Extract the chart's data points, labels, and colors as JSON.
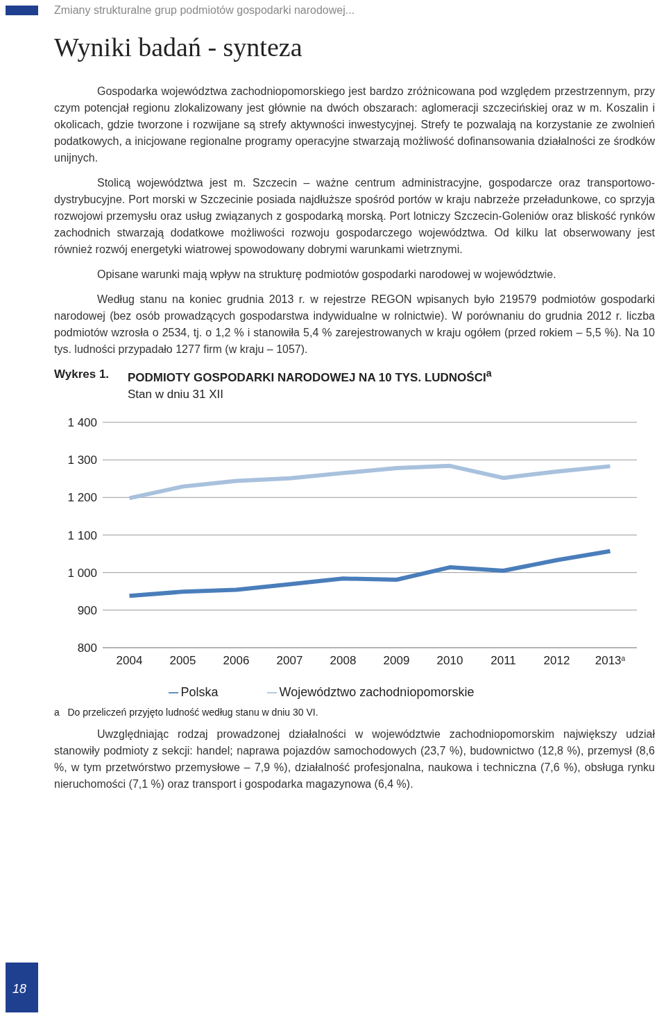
{
  "chart_data": {
    "type": "line",
    "title": "PODMIOTY GOSPODARKI NARODOWEJ NA 10 TYS. LUDNOŚCI$^{a}$",
    "subtitle": "Stan w dniu 31 XII",
    "annotations": [
      "Zmiany strukturalne grup podmiotów gospodarki narodowej...",
      "Wyniki badań - synteza",
      "Gospodarka województwa zachodniopomorskiego jest bardzo zróżnicowana pod względem przestrzennym, przy czym potencjał regionu zlokalizowany jest głównie na dwóch obszarach: aglomeracji szczecińskiej oraz w m. Koszalin i okolicach, gdzie tworzone i rozwijane są strefy aktywności inwestycyjnej. Strefy te pozwalają na korzystanie ze zwolnień podatkowych, a inicjowane regionalne programy operacyjne stwarzają możliwość dofinansowania działalności ze środków unijnych.",
      "Stolicą województwa jest m. Szczecin – ważne centrum administracyjne, gospodarcze oraz transportowo-dystrybucyjne. Port morski w Szczecinie posiada najdłuższe spośród portów w kraju nabrzeże przeładunkowe, co sprzyja rozwojowi przemysłu oraz usług związanych z gospodarką morską. Port lotniczy Szczecin-Goleniów oraz bliskość rynków zachodnich stwarzają dodatkowe możliwości rozwoju gospodarczego województwa. Od kilku lat obserwowany jest również rozwój energetyki wiatrowej spowodowany dobrymi warunkami wietrznymi.",
      "Opisane warunki mają wpływ na strukturę podmiotów gospodarki narodowej w województwie.",
      "Według stanu na koniec grudnia 2013 r. w rejestrze REGON wpisanych było 219579 podmiotów gospodarki narodowej (bez osób prowadzących gospodarstwa indywidualne w rolnictwie). W porównaniu do grudnia 2012 r. liczba podmiotów wzrosła o 2534, tj. o 1,2 % i stanowiła 5,4 % zarejestrowanych w kraju ogółem (przed rokiem – 5,5 %). Na 10 tys. ludności przypadało 1277 firm (w kraju – 1057).",
      "Wykres 1.",
      "a   Do przeliczeń przyjęto ludność według stanu w dniu 30 VI.",
      "Uwzględniając rodzaj prowadzonej działalności w województwie zachodniopomorskim największy udział stanowiły podmioty z sekcji: handel; naprawa pojazdów samochodowych (23,7 %), budownictwo (12,8 %), przemysł (8,6 %, w tym przetwórstwo przemysłowe – 7,9 %), działalność profesjonalna, naukowa i techniczna (7,6 %), obsługa rynku nieruchomości (7,1 %) oraz transport i gospodarka magazynowa (6,4 %).",
      "18"
    ],
    "categories": [
      "2004",
      "2005",
      "2006",
      "2007",
      "2008",
      "2009",
      "2010",
      "2011",
      "2012",
      "2013$^{a}$"
    ],
    "series": [
      {
        "name": "Polska",
        "color": "#4a7ebb",
        "values": [
          938,
          949,
          954,
          969,
          984,
          981,
          1014,
          1005,
          1033,
          1057
        ]
      },
      {
        "name": "Województwo zachodniopomorskie",
        "color": "#a8c1dd",
        "values": [
          1198,
          1229,
          1244,
          1251,
          1265,
          1278,
          1284,
          1252,
          1269,
          1283
        ]
      }
    ],
    "ylim": [
      800,
      1400
    ],
    "yticks": [
      800,
      900,
      {
        "value": 1000,
        "label": "1 000"
      },
      {
        "value": 1100,
        "label": "1 100"
      },
      {
        "value": 1200,
        "label": "1 200"
      },
      {
        "value": 1300,
        "label": "1 300"
      },
      {
        "value": 1400,
        "label": "1 400"
      }
    ],
    "grid": "y",
    "legend": "bottom",
    "marker": "none",
    "line_style": "solid"
  }
}
